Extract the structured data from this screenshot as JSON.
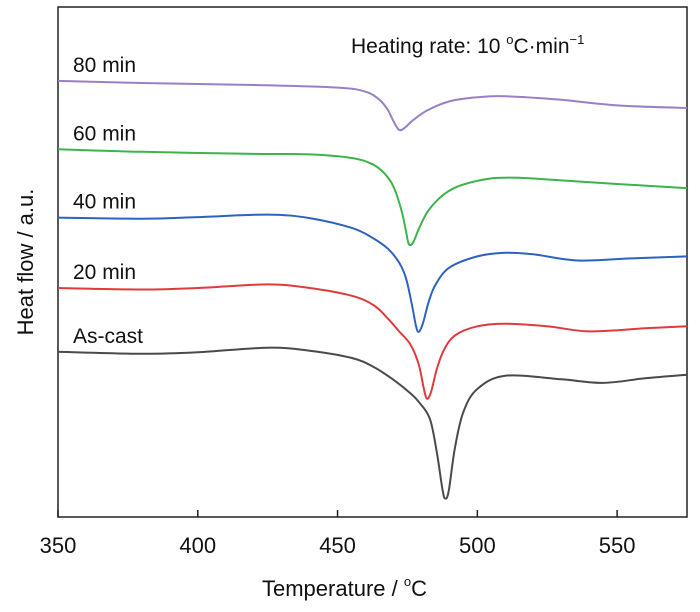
{
  "chart_data": {
    "type": "line",
    "title": "",
    "xlabel": "Temperature / °C",
    "xlabel_main": "Temperature / ",
    "xlabel_sup": "o",
    "xlabel_unit": "C",
    "ylabel": "Heat flow / a.u.",
    "xlim": [
      350,
      575
    ],
    "ylim": [
      0,
      100
    ],
    "xticks": [
      350,
      400,
      450,
      500,
      550
    ],
    "y_tick_labels": false,
    "grid": false,
    "annotation": {
      "text": "Heating rate: 10 °C·min⁻¹",
      "prefix": "Heating rate: 10 ",
      "sup1": "o",
      "mid": "C·min",
      "sup2": "−1",
      "position": "top-right"
    },
    "series": [
      {
        "name": "80 min",
        "color": "#9a7fc7",
        "x": [
          350,
          380,
          420,
          450,
          460,
          465,
          468,
          470,
          472,
          474,
          477,
          482,
          490,
          500,
          510,
          530,
          550,
          575
        ],
        "y": [
          85.5,
          85.1,
          84.7,
          84.2,
          83.4,
          81.8,
          79.8,
          77.6,
          75.9,
          76.3,
          77.8,
          79.7,
          81.5,
          82.3,
          82.5,
          81.8,
          80.7,
          80.2
        ]
      },
      {
        "name": "60 min",
        "color": "#3cb44a",
        "x": [
          350,
          380,
          420,
          440,
          455,
          462,
          466,
          469,
          471,
          473,
          474.5,
          475.5,
          477,
          479,
          482,
          486,
          490,
          495,
          505,
          515,
          530,
          550,
          575
        ],
        "y": [
          72.1,
          71.6,
          71.2,
          71.1,
          70.4,
          69.3,
          67.8,
          65.8,
          63.4,
          59.8,
          56.0,
          53.5,
          53.8,
          56.4,
          59.7,
          62.3,
          64.0,
          65.2,
          66.4,
          66.5,
          66.0,
          65.3,
          64.5
        ]
      },
      {
        "name": "40 min",
        "color": "#2e62c0",
        "x": [
          350,
          380,
          400,
          425,
          440,
          455,
          462,
          468,
          472,
          474.5,
          476.5,
          478,
          479,
          480.5,
          482.5,
          485,
          490,
          500,
          510,
          520,
          536,
          555,
          575
        ],
        "y": [
          58.7,
          58.5,
          58.8,
          59.3,
          58.6,
          56.7,
          54.9,
          52.6,
          49.9,
          46.8,
          41.9,
          37.6,
          36.3,
          37.9,
          42.0,
          45.5,
          48.9,
          51.1,
          51.8,
          51.5,
          50.3,
          50.7,
          51.1
        ]
      },
      {
        "name": "20 min",
        "color": "#e03a3a",
        "x": [
          350,
          380,
          400,
          425,
          440,
          455,
          463,
          468,
          472,
          476,
          479,
          480.8,
          482,
          483.5,
          485.5,
          488,
          492,
          500,
          510,
          525,
          540,
          560,
          575
        ],
        "y": [
          44.9,
          44.6,
          44.9,
          45.6,
          44.9,
          43.4,
          41.5,
          38.9,
          36.4,
          33.9,
          30.0,
          25.3,
          23.2,
          24.6,
          29.0,
          32.7,
          35.6,
          37.4,
          37.9,
          37.4,
          36.4,
          37.0,
          37.4
        ]
      },
      {
        "name": "As-cast",
        "color": "#4a4a4a",
        "x": [
          350,
          380,
          400,
          425,
          440,
          455,
          463,
          470,
          476,
          479,
          483,
          485.5,
          487.5,
          488.5,
          489.8,
          492,
          495,
          500,
          510,
          530,
          545,
          560,
          575
        ],
        "y": [
          32.4,
          32.0,
          32.3,
          33.2,
          32.6,
          31.2,
          29.4,
          26.9,
          24.3,
          22.6,
          19.3,
          12.7,
          5.5,
          3.6,
          5.2,
          13.6,
          20.6,
          25.1,
          27.7,
          27.0,
          26.3,
          27.2,
          27.9
        ]
      }
    ]
  }
}
